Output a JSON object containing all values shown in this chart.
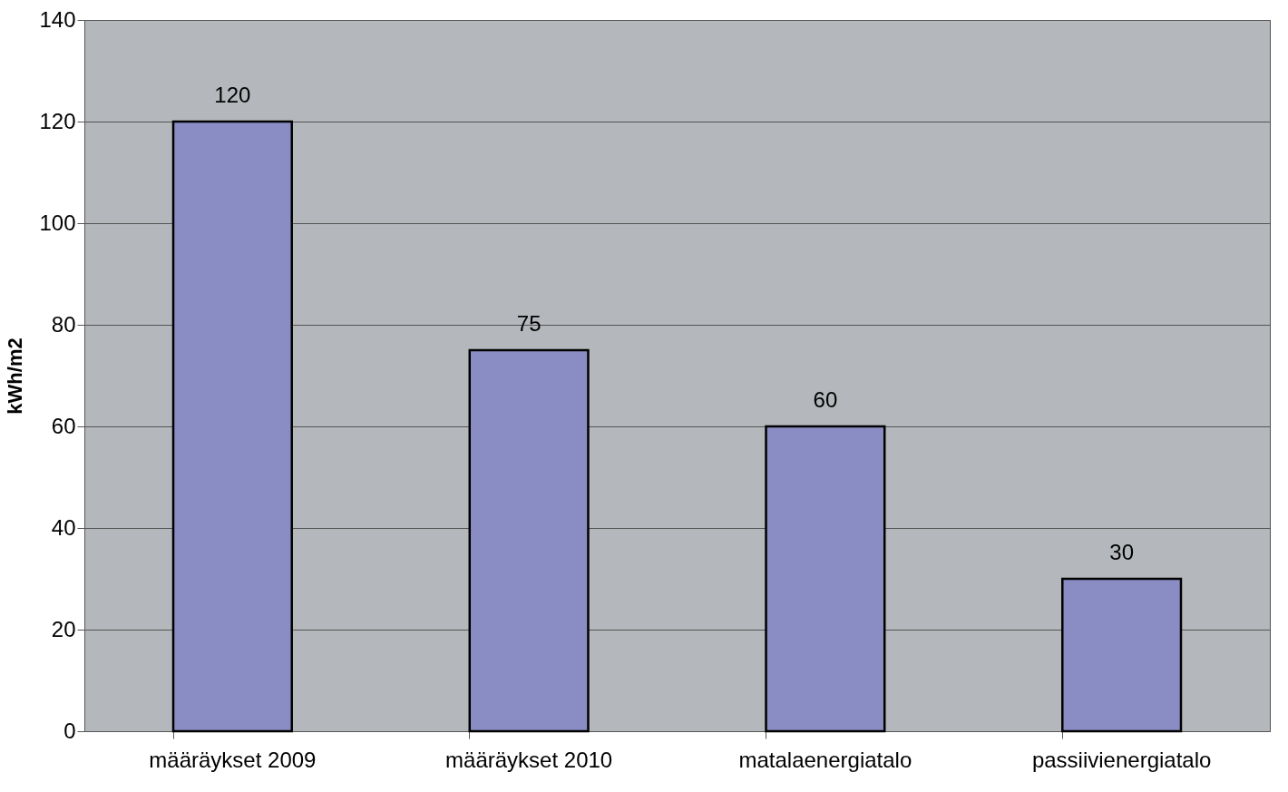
{
  "chart_data": {
    "type": "bar",
    "ylabel": "kWh/m2",
    "categories": [
      "määräykset 2009",
      "määräykset 2010",
      "matalaenergiatalo",
      "passiivienergiatalo"
    ],
    "values": [
      120,
      75,
      60,
      30
    ],
    "color": "#8a8cc4",
    "ylim": [
      0,
      140
    ],
    "yticks": [
      0,
      20,
      40,
      60,
      80,
      100,
      120,
      140
    ],
    "grid": "y",
    "data_labels": true
  }
}
